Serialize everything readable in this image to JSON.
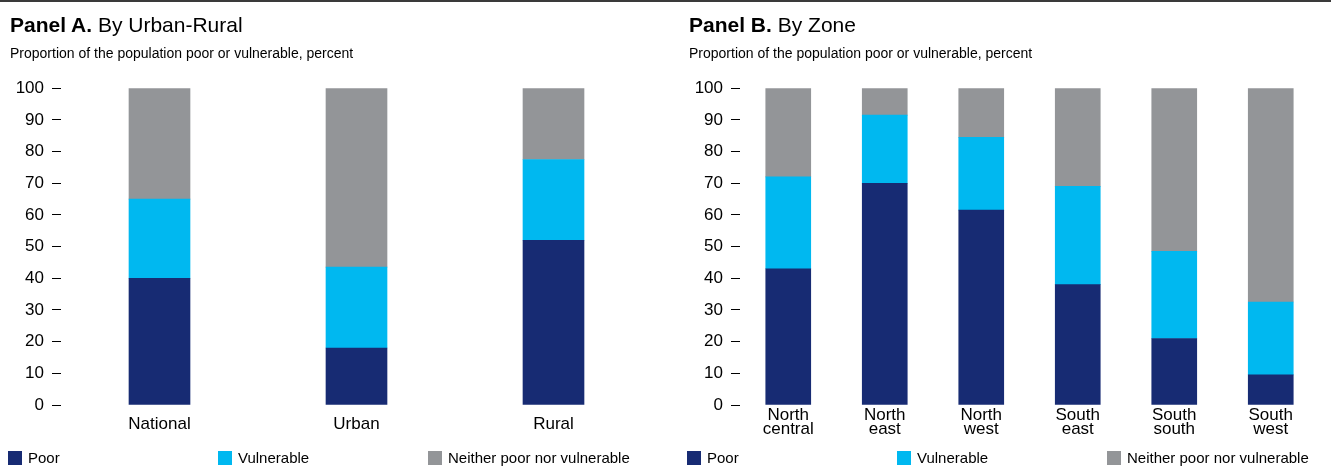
{
  "chart_data": [
    {
      "type": "bar",
      "title": "Panel A. By Urban-Rural",
      "subtitle": "Proportion of the population poor or vulnerable, percent",
      "categories": [
        "National",
        "Urban",
        "Rural"
      ],
      "stacked": true,
      "ylim": [
        0,
        100
      ],
      "yticks": [
        0,
        10,
        20,
        30,
        40,
        50,
        60,
        70,
        80,
        90,
        100
      ],
      "grid": false,
      "legend": "bottom",
      "series": [
        {
          "name": "Poor",
          "color": "#172b73",
          "values": [
            40,
            18,
            52
          ]
        },
        {
          "name": "Vulnerable",
          "color": "#00b8f0",
          "values": [
            25,
            25.5,
            25.5
          ]
        },
        {
          "name": "Neither poor nor vulnerable",
          "color": "#939598",
          "values": [
            35,
            56.5,
            22.5
          ]
        }
      ]
    },
    {
      "type": "bar",
      "title": "Panel B. By Zone",
      "subtitle": "Proportion of the population poor or vulnerable, percent",
      "categories": [
        "North central",
        "North east",
        "North west",
        "South east",
        "South south",
        "South west"
      ],
      "stacked": true,
      "ylim": [
        0,
        100
      ],
      "yticks": [
        0,
        10,
        20,
        30,
        40,
        50,
        60,
        70,
        80,
        90,
        100
      ],
      "grid": false,
      "legend": "bottom",
      "series": [
        {
          "name": "Poor",
          "color": "#172b73",
          "values": [
            43,
            70,
            61.5,
            38,
            21,
            9.5
          ]
        },
        {
          "name": "Vulnerable",
          "color": "#00b8f0",
          "values": [
            29,
            21.5,
            23,
            31,
            27.5,
            23
          ]
        },
        {
          "name": "Neither poor nor vulnerable",
          "color": "#939598",
          "values": [
            28,
            8.5,
            15.5,
            31,
            51.5,
            67.5
          ]
        }
      ]
    }
  ]
}
